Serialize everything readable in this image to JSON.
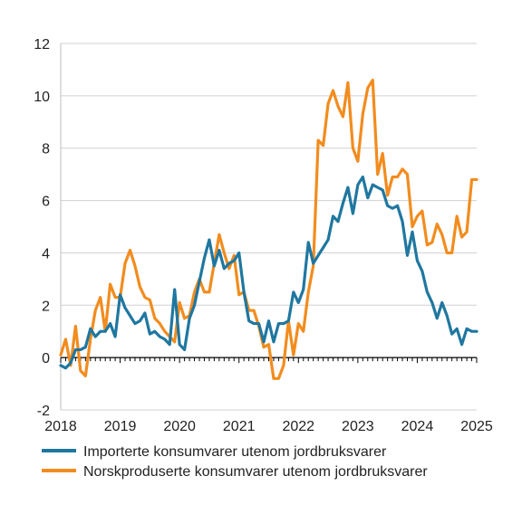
{
  "chart_data": {
    "type": "line",
    "title": "",
    "xlabel": "",
    "ylabel": "",
    "xlim": [
      2018,
      2025
    ],
    "ylim": [
      -2,
      12
    ],
    "x_ticks": [
      "2018",
      "2019",
      "2020",
      "2021",
      "2022",
      "2023",
      "2024",
      "2025"
    ],
    "y_ticks": [
      "-2",
      "0",
      "2",
      "4",
      "6",
      "8",
      "10",
      "12"
    ],
    "grid": "horizontal",
    "legend_position": "bottom",
    "series": [
      {
        "name": "Importerte konsumvarer utenom jordbruksvarer",
        "color": "#1f77a0",
        "x": [
          2018.0,
          2018.083,
          2018.167,
          2018.25,
          2018.333,
          2018.417,
          2018.5,
          2018.583,
          2018.667,
          2018.75,
          2018.833,
          2018.917,
          2019.0,
          2019.083,
          2019.167,
          2019.25,
          2019.333,
          2019.417,
          2019.5,
          2019.583,
          2019.667,
          2019.75,
          2019.833,
          2019.917,
          2020.0,
          2020.083,
          2020.167,
          2020.25,
          2020.333,
          2020.417,
          2020.5,
          2020.583,
          2020.667,
          2020.75,
          2020.833,
          2020.917,
          2021.0,
          2021.083,
          2021.167,
          2021.25,
          2021.333,
          2021.417,
          2021.5,
          2021.583,
          2021.667,
          2021.75,
          2021.833,
          2021.917,
          2022.0,
          2022.083,
          2022.167,
          2022.25,
          2022.333,
          2022.417,
          2022.5,
          2022.583,
          2022.667,
          2022.75,
          2022.833,
          2022.917,
          2023.0,
          2023.083,
          2023.167,
          2023.25,
          2023.333,
          2023.417,
          2023.5,
          2023.583,
          2023.667,
          2023.75,
          2023.833,
          2023.917,
          2024.0,
          2024.083,
          2024.167,
          2024.25,
          2024.333,
          2024.417,
          2024.5,
          2024.583,
          2024.667,
          2024.75,
          2024.833,
          2024.917,
          2025.0
        ],
        "values": [
          -0.3,
          -0.4,
          -0.2,
          0.3,
          0.3,
          0.4,
          1.1,
          0.8,
          1.0,
          1.0,
          1.3,
          0.8,
          2.4,
          1.9,
          1.6,
          1.3,
          1.4,
          1.7,
          0.9,
          1.0,
          0.8,
          0.7,
          0.5,
          2.6,
          0.5,
          0.3,
          1.5,
          2.0,
          2.9,
          3.8,
          4.5,
          3.5,
          4.1,
          3.4,
          3.6,
          3.7,
          4.0,
          2.5,
          1.4,
          1.3,
          1.3,
          0.6,
          1.4,
          0.6,
          1.3,
          1.3,
          1.4,
          2.5,
          2.1,
          2.6,
          4.4,
          3.6,
          3.9,
          4.2,
          4.5,
          5.4,
          5.2,
          5.9,
          6.5,
          5.5,
          6.6,
          6.9,
          6.1,
          6.6,
          6.5,
          6.4,
          5.8,
          5.7,
          5.8,
          5.2,
          3.9,
          4.8,
          3.7,
          3.3,
          2.5,
          2.1,
          1.5,
          2.1,
          1.6,
          0.9,
          1.1,
          0.5,
          1.1,
          1.0,
          1.0
        ]
      },
      {
        "name": "Norskproduserte konsumvarer utenom jordbruksvarer",
        "color": "#f28c1e",
        "x": [
          2018.0,
          2018.083,
          2018.167,
          2018.25,
          2018.333,
          2018.417,
          2018.5,
          2018.583,
          2018.667,
          2018.75,
          2018.833,
          2018.917,
          2019.0,
          2019.083,
          2019.167,
          2019.25,
          2019.333,
          2019.417,
          2019.5,
          2019.583,
          2019.667,
          2019.75,
          2019.833,
          2019.917,
          2020.0,
          2020.083,
          2020.167,
          2020.25,
          2020.333,
          2020.417,
          2020.5,
          2020.583,
          2020.667,
          2020.75,
          2020.833,
          2020.917,
          2021.0,
          2021.083,
          2021.167,
          2021.25,
          2021.333,
          2021.417,
          2021.5,
          2021.583,
          2021.667,
          2021.75,
          2021.833,
          2021.917,
          2022.0,
          2022.083,
          2022.167,
          2022.25,
          2022.333,
          2022.417,
          2022.5,
          2022.583,
          2022.667,
          2022.75,
          2022.833,
          2022.917,
          2023.0,
          2023.083,
          2023.167,
          2023.25,
          2023.333,
          2023.417,
          2023.5,
          2023.583,
          2023.667,
          2023.75,
          2023.833,
          2023.917,
          2024.0,
          2024.083,
          2024.167,
          2024.25,
          2024.333,
          2024.417,
          2024.5,
          2024.583,
          2024.667,
          2024.75,
          2024.833,
          2024.917,
          2025.0
        ],
        "values": [
          0.1,
          0.7,
          -0.3,
          1.2,
          -0.5,
          -0.7,
          0.7,
          1.8,
          2.3,
          1.0,
          2.8,
          2.3,
          2.3,
          3.6,
          4.1,
          3.5,
          2.7,
          2.3,
          2.2,
          1.5,
          1.3,
          1.0,
          0.8,
          0.6,
          2.1,
          1.5,
          1.6,
          2.5,
          3.0,
          2.5,
          2.5,
          3.6,
          4.7,
          4.0,
          3.4,
          3.9,
          2.4,
          2.5,
          1.8,
          1.8,
          1.2,
          0.4,
          0.5,
          -0.8,
          -0.8,
          -0.3,
          1.4,
          0.1,
          1.3,
          1.0,
          2.5,
          3.5,
          8.3,
          8.1,
          9.7,
          10.2,
          9.6,
          9.2,
          10.5,
          8.0,
          7.5,
          9.3,
          10.3,
          10.6,
          7.0,
          7.8,
          6.2,
          6.9,
          6.9,
          7.2,
          7.0,
          5.0,
          5.4,
          5.6,
          4.3,
          4.4,
          5.1,
          4.7,
          4.0,
          4.0,
          5.4,
          4.6,
          4.8,
          6.8,
          6.8
        ]
      }
    ]
  }
}
